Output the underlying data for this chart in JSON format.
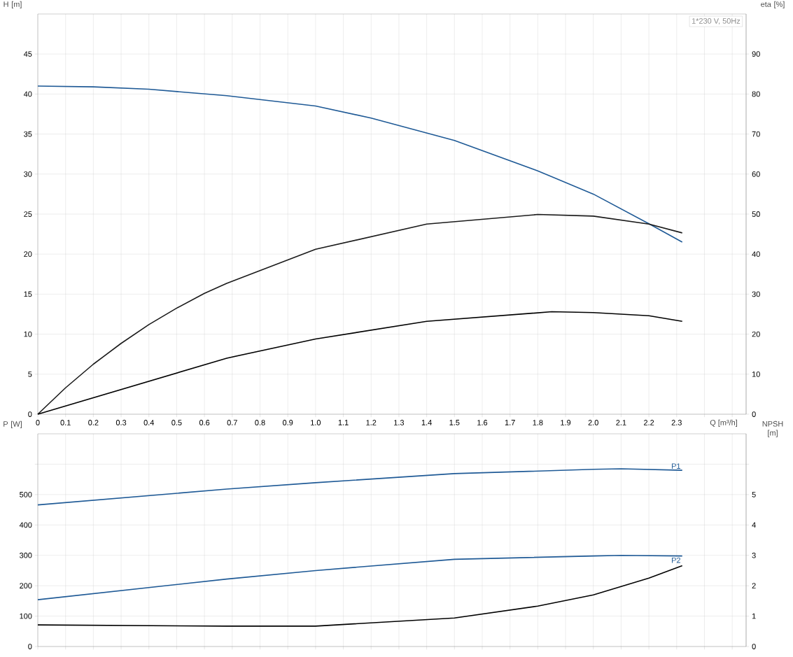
{
  "chart_data": [
    {
      "type": "line",
      "title": "1*230 V, 50Hz",
      "xlabel": "Q [m³/h]",
      "ylabel": "H [m]",
      "y2label": "eta [%]",
      "xlim": [
        0,
        2.55
      ],
      "xticks": [
        0,
        0.1,
        0.2,
        0.3,
        0.4,
        0.5,
        0.6,
        0.7,
        0.8,
        0.9,
        {
          "value": 1,
          "label": "1.0"
        },
        1.1,
        1.2,
        1.3,
        1.4,
        1.5,
        1.6,
        1.7,
        1.8,
        1.9,
        {
          "value": 2,
          "label": "2.0"
        },
        2.1,
        2.2,
        2.3,
        {
          "value": 2.4,
          "label": null
        },
        {
          "value": 2.5,
          "label": null
        }
      ],
      "ylim": [
        0,
        50
      ],
      "yticks": [
        0,
        5,
        10,
        15,
        20,
        25,
        30,
        35,
        40,
        45
      ],
      "y2lim": [
        0,
        100
      ],
      "y2ticks": [
        0,
        10,
        20,
        30,
        40,
        50,
        60,
        70,
        80,
        90
      ],
      "grid": true,
      "series": [
        {
          "color": "#1f5a96",
          "x": [
            0,
            0.2,
            0.4,
            0.68,
            1.0,
            1.2,
            1.5,
            1.8,
            2.0,
            2.2,
            2.32
          ],
          "values": [
            41.0,
            40.9,
            40.6,
            39.8,
            38.5,
            37.0,
            34.2,
            30.4,
            27.5,
            23.8,
            21.5
          ]
        },
        {
          "color": "#1a1a1a",
          "axis": "y2",
          "x": [
            0,
            0.1,
            0.2,
            0.3,
            0.4,
            0.5,
            0.6,
            0.68,
            1.0,
            1.4,
            1.8,
            2.0,
            2.2,
            2.32
          ],
          "values": [
            0,
            6.6,
            12.5,
            17.7,
            22.4,
            26.5,
            30.2,
            32.7,
            41.2,
            47.5,
            49.9,
            49.5,
            47.5,
            45.3
          ]
        },
        {
          "color": "#000000",
          "axis": "y2",
          "x": [
            0,
            0.68,
            1.0,
            1.4,
            1.85,
            2.0,
            2.2,
            2.32
          ],
          "values": [
            0,
            14.0,
            18.8,
            23.2,
            25.6,
            25.4,
            24.6,
            23.2
          ]
        }
      ]
    },
    {
      "type": "line",
      "ylabel": "P [W]",
      "y2label": "NPSH [m]",
      "tick_labels": "y",
      "xlim": [
        0,
        2.55
      ],
      "xticks": [
        0,
        0.1,
        0.2,
        0.3,
        0.4,
        0.5,
        0.6,
        0.7,
        0.8,
        0.9,
        1,
        1.1,
        1.2,
        1.3,
        1.4,
        1.5,
        1.6,
        1.7,
        1.8,
        1.9,
        2,
        2.1,
        2.2,
        2.3,
        2.4,
        2.5
      ],
      "ylim": [
        0,
        700
      ],
      "yticks": [
        0,
        100,
        200,
        300,
        400,
        500,
        {
          "value": 600,
          "label": null
        }
      ],
      "y2lim": [
        0,
        7
      ],
      "y2ticks": [
        0,
        1,
        2,
        3,
        4,
        5,
        {
          "value": 6,
          "label": null
        }
      ],
      "grid": true,
      "series": [
        {
          "name": "P1",
          "color": "#1f5a96",
          "x": [
            0,
            0.68,
            1.0,
            1.5,
            2.0,
            2.1,
            2.32
          ],
          "values": [
            466,
            518,
            539,
            569,
            583,
            585,
            580
          ]
        },
        {
          "name": "P2",
          "color": "#1f5a96",
          "x": [
            0,
            0.68,
            1.0,
            1.5,
            2.0,
            2.1,
            2.32
          ],
          "values": [
            154,
            222,
            250,
            287,
            298,
            300,
            298
          ]
        },
        {
          "color": "#000000",
          "axis": "y2",
          "x": [
            0,
            0.68,
            1.0,
            1.5,
            1.8,
            2.0,
            2.2,
            2.32
          ],
          "values": [
            0.71,
            0.67,
            0.67,
            0.94,
            1.33,
            1.7,
            2.25,
            2.66
          ]
        }
      ]
    }
  ]
}
